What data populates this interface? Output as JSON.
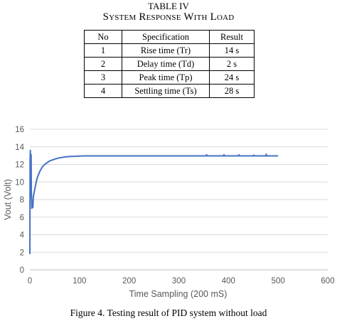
{
  "table": {
    "label": "TABLE IV",
    "title": "System Response With Load",
    "headers": [
      "No",
      "Specification",
      "Result"
    ],
    "rows": [
      [
        "1",
        "Rise time (Tr)",
        "14 s"
      ],
      [
        "2",
        "Delay time (Td)",
        "2 s"
      ],
      [
        "3",
        "Peak time (Tp)",
        "24 s"
      ],
      [
        "4",
        "Settling time (Ts)",
        "28 s"
      ]
    ]
  },
  "figure_caption": "Figure 4. Testing result of PID system without load",
  "chart_data": {
    "type": "line",
    "title": "",
    "xlabel": "Time Sampling (200 mS)",
    "ylabel": "Vout (Volt)",
    "xlim": [
      0,
      600
    ],
    "ylim": [
      0,
      16
    ],
    "xticks": [
      0,
      100,
      200,
      300,
      400,
      500,
      600
    ],
    "yticks": [
      0,
      2,
      4,
      6,
      8,
      10,
      12,
      14,
      16
    ],
    "grid": "horizontal",
    "line_color": "#4472c4",
    "series": [
      {
        "x": [
          0,
          0.5,
          1,
          1.5,
          2,
          2.5,
          3,
          4,
          5,
          6,
          7,
          8,
          10,
          12,
          15,
          20,
          25,
          30,
          40,
          50,
          60,
          70,
          80,
          90,
          100,
          110,
          200,
          300,
          355,
          356,
          357,
          390,
          391,
          392,
          420,
          421,
          422,
          450,
          451,
          452,
          475,
          476,
          477,
          478,
          500
        ],
        "y": [
          1.8,
          12.5,
          13.6,
          11.2,
          8.3,
          13.1,
          9.0,
          7.0,
          7.8,
          7.1,
          8.3,
          8.6,
          9.2,
          9.8,
          10.5,
          11.2,
          11.7,
          12.0,
          12.4,
          12.6,
          12.75,
          12.85,
          12.9,
          12.92,
          12.95,
          12.97,
          12.97,
          12.97,
          12.97,
          13.1,
          12.97,
          12.97,
          13.1,
          12.97,
          12.97,
          13.1,
          12.97,
          12.97,
          13.05,
          12.97,
          12.97,
          13.15,
          12.95,
          12.97,
          12.97
        ]
      }
    ]
  }
}
